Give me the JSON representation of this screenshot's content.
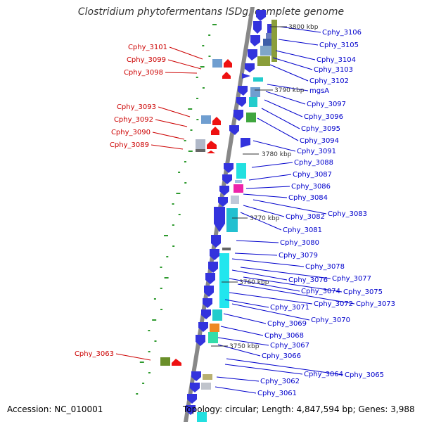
{
  "title": "Clostridium phytofermentans ISDg, complete genome",
  "accession": "Accession: NC_010001",
  "topology": "Topology: circular; Length: 4,847,594 bp; Genes: 3,988",
  "colors": {
    "left_label": "#cc0000",
    "right_label": "#0000cc",
    "kbp_label": "#333333",
    "backbone": "#888888"
  },
  "kbp_marks": [
    "3800 kbp",
    "3790 kbp",
    "3780 kbp",
    "3770 kbp",
    "3760 kbp",
    "3750 kbp"
  ],
  "left_genes": [
    "Cphy_3101",
    "Cphy_3099",
    "Cphy_3098",
    "Cphy_3093",
    "Cphy_3092",
    "Cphy_3090",
    "Cphy_3089",
    "Cphy_3063"
  ],
  "right_genes": [
    "Cphy_3106",
    "Cphy_3105",
    "Cphy_3104",
    "Cphy_3103",
    "Cphy_3102",
    "mgsA",
    "Cphy_3097",
    "Cphy_3096",
    "Cphy_3095",
    "Cphy_3094",
    "Cphy_3091",
    "Cphy_3088",
    "Cphy_3087",
    "Cphy_3086",
    "Cphy_3084",
    "Cphy_3083",
    "Cphy_3082",
    "Cphy_3081",
    "Cphy_3080",
    "Cphy_3079",
    "Cphy_3078",
    "Cphy_3077",
    "Cphy_3076",
    "Cphy_3075",
    "Cphy_3074",
    "Cphy_3073",
    "Cphy_3072",
    "Cphy_3071",
    "Cphy_3070",
    "Cphy_3069",
    "Cphy_3068",
    "Cphy_3067",
    "Cphy_3066",
    "Cphy_3065",
    "Cphy_3064",
    "Cphy_3062",
    "Cphy_3061"
  ]
}
